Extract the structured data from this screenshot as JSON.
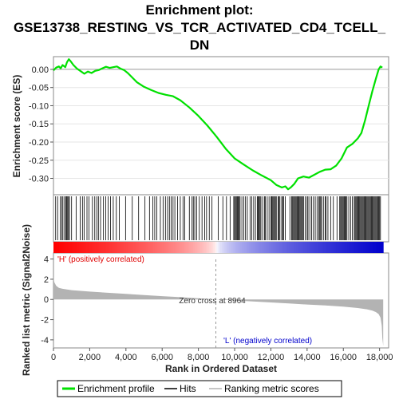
{
  "chart_data": {
    "type": "line",
    "title_lines": [
      "Enrichment plot:",
      "GSE13738_RESTING_VS_TCR_ACTIVATED_CD4_TCELL_",
      "DN"
    ],
    "xlabel": "Rank in Ordered Dataset",
    "xlim": [
      0,
      18500
    ],
    "x_ticks": [
      0,
      2000,
      4000,
      6000,
      8000,
      10000,
      12000,
      14000,
      16000,
      18000
    ],
    "x_tick_labels": [
      "0",
      "2,000",
      "4,000",
      "6,000",
      "8,000",
      "10,000",
      "12,000",
      "14,000",
      "16,000",
      "18,000"
    ],
    "es_panel": {
      "ylabel": "Enrichment score (ES)",
      "ylim": [
        -0.345,
        0.035
      ],
      "y_ticks": [
        0.0,
        -0.05,
        -0.1,
        -0.15,
        -0.2,
        -0.25,
        -0.3
      ],
      "y_tick_labels": [
        "0.00",
        "-0.05",
        "-0.10",
        "-0.15",
        "-0.20",
        "-0.25",
        "-0.30"
      ],
      "line_color": "#00e000",
      "series": [
        {
          "name": "Enrichment profile",
          "x": [
            0,
            150,
            300,
            400,
            500,
            650,
            750,
            850,
            950,
            1100,
            1300,
            1500,
            1700,
            1900,
            2100,
            2300,
            2500,
            2700,
            2900,
            3100,
            3300,
            3500,
            3700,
            3900,
            4100,
            4300,
            4600,
            5000,
            5400,
            5800,
            6200,
            6600,
            7000,
            7500,
            8000,
            8500,
            9000,
            9500,
            10000,
            10500,
            11000,
            11500,
            12000,
            12300,
            12600,
            12800,
            12950,
            13100,
            13300,
            13500,
            13800,
            14100,
            14400,
            14700,
            15000,
            15300,
            15600,
            15900,
            16200,
            16500,
            16800,
            17000,
            17200,
            17400,
            17600,
            17800,
            17950,
            18050,
            18150
          ],
          "y": [
            -0.003,
            0.005,
            0.008,
            0.003,
            0.012,
            0.006,
            0.02,
            0.028,
            0.022,
            0.012,
            0.002,
            -0.005,
            -0.012,
            -0.006,
            -0.01,
            -0.004,
            -0.002,
            0.003,
            0.007,
            0.004,
            0.006,
            0.008,
            0.002,
            -0.002,
            -0.01,
            -0.02,
            -0.035,
            -0.048,
            -0.057,
            -0.065,
            -0.07,
            -0.074,
            -0.085,
            -0.105,
            -0.128,
            -0.155,
            -0.185,
            -0.218,
            -0.245,
            -0.262,
            -0.278,
            -0.292,
            -0.305,
            -0.318,
            -0.325,
            -0.322,
            -0.33,
            -0.325,
            -0.315,
            -0.3,
            -0.295,
            -0.298,
            -0.29,
            -0.282,
            -0.276,
            -0.275,
            -0.265,
            -0.245,
            -0.215,
            -0.205,
            -0.19,
            -0.175,
            -0.14,
            -0.1,
            -0.06,
            -0.025,
            0.0,
            0.008,
            0.005
          ]
        }
      ],
      "zero_line": 0.0
    },
    "hits": [
      120,
      230,
      380,
      460,
      520,
      610,
      680,
      730,
      780,
      830,
      880,
      1000,
      1250,
      1480,
      1600,
      1690,
      1850,
      1960,
      2150,
      2280,
      2390,
      2480,
      2600,
      2760,
      2890,
      3020,
      3150,
      3300,
      3470,
      3630,
      3980,
      4350,
      4700,
      5050,
      5300,
      5480,
      5590,
      5700,
      5900,
      6050,
      6180,
      6300,
      6400,
      6500,
      6600,
      6700,
      6850,
      7000,
      7150,
      7250,
      7500,
      7650,
      7720,
      7800,
      7900,
      8050,
      8200,
      8350,
      8450,
      8600,
      8750,
      9100,
      9350,
      9550,
      9750,
      9950,
      10000,
      10050,
      10100,
      10150,
      10200,
      10250,
      10300,
      10400,
      10500,
      10600,
      10700,
      10850,
      10950,
      11050,
      11150,
      11250,
      11300,
      11350,
      11400,
      11450,
      11550,
      11650,
      11700,
      11800,
      11900,
      12000,
      12050,
      12100,
      12150,
      12200,
      12250,
      12300,
      12400,
      12450,
      12500,
      12600,
      12650,
      12700,
      12800,
      13050,
      13150,
      13200,
      13250,
      13300,
      13350,
      13400,
      13450,
      13500,
      13550,
      13600,
      13650,
      13700,
      13750,
      13800,
      13900,
      14000,
      14050,
      14150,
      14250,
      14350,
      14450,
      14550,
      14650,
      14700,
      14750,
      14800,
      14900,
      15000,
      15050,
      15150,
      15300,
      15450,
      15650,
      15800,
      15850,
      15900,
      15950,
      16000,
      16050,
      16100,
      16150,
      16200,
      16300,
      16400,
      16500,
      16600,
      16650,
      16700,
      16750,
      16800,
      16850,
      16900,
      16950,
      17000,
      17050,
      17100,
      17150,
      17200,
      17250,
      17300,
      17350,
      17400,
      17450,
      17500,
      17550,
      17600,
      17650,
      17700,
      17750,
      17800,
      17850,
      17900,
      17950,
      18000,
      18050
    ],
    "heatmap": {
      "positive_color": "#ff0000",
      "negative_color": "#0000cc",
      "neutral_color": "#ffffff",
      "zero_cross_rank": 8964
    },
    "metric_panel": {
      "ylabel": "Ranked list metric (Signal2Noise)",
      "ylim": [
        -4.8,
        4.6
      ],
      "y_ticks": [
        4,
        2,
        0,
        -2,
        -4
      ],
      "y_tick_labels": [
        "4",
        "2",
        "0",
        "-2",
        "-4"
      ],
      "fill_color": "#b3b3b3",
      "x": [
        0,
        50,
        150,
        300,
        500,
        1000,
        2000,
        3000,
        4000,
        5000,
        6000,
        7000,
        8000,
        8964,
        10000,
        11000,
        12000,
        13000,
        14000,
        15000,
        16000,
        16800,
        17300,
        17600,
        17800,
        17950,
        18050,
        18120,
        18150,
        18200
      ],
      "y": [
        2.2,
        1.7,
        1.35,
        1.15,
        1.05,
        0.92,
        0.78,
        0.66,
        0.55,
        0.44,
        0.33,
        0.22,
        0.11,
        0.0,
        -0.1,
        -0.2,
        -0.3,
        -0.4,
        -0.5,
        -0.6,
        -0.72,
        -0.85,
        -0.98,
        -1.1,
        -1.25,
        -1.45,
        -1.8,
        -2.6,
        -3.8,
        -4.6
      ],
      "annotations": {
        "positive": "'H' (positively correlated)",
        "zero_cross": "Zero cross at 8964",
        "negative": "'L' (negatively correlated)"
      },
      "positive_color": "#e00000",
      "negative_color": "#0000cc"
    },
    "legend": [
      {
        "label": "Enrichment profile",
        "color": "#00e000",
        "kind": "line"
      },
      {
        "label": "Hits",
        "color": "#000000",
        "kind": "line"
      },
      {
        "label": "Ranking metric scores",
        "color": "#b3b3b3",
        "kind": "line"
      }
    ]
  }
}
